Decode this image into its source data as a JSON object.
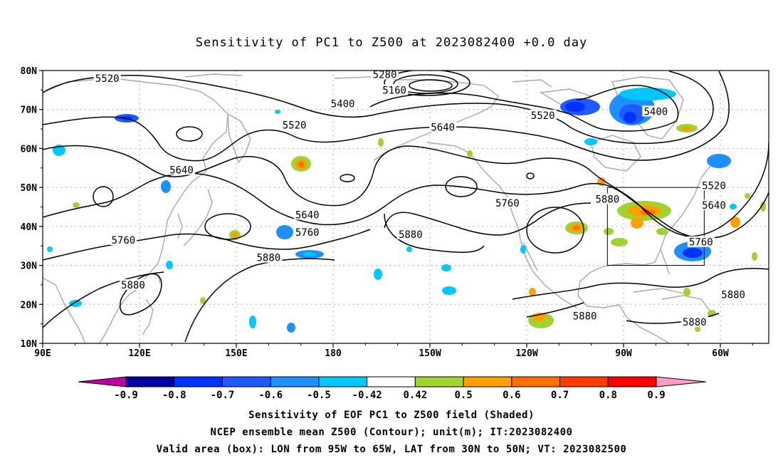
{
  "title": "Sensitivity of PC1 to Z500 at 2023082400 +0.0 day",
  "map": {
    "lat_labels": [
      "80N",
      "70N",
      "60N",
      "50N",
      "40N",
      "30N",
      "20N",
      "10N"
    ],
    "lon_labels": [
      "90E",
      "120E",
      "150E",
      "180",
      "150W",
      "120W",
      "90W",
      "60W"
    ],
    "contour_labels": [
      {
        "text": "5520",
        "lat": 78,
        "lon": 110
      },
      {
        "text": "5280",
        "lat": 79,
        "lon": 196
      },
      {
        "text": "5160",
        "lat": 75,
        "lon": 199
      },
      {
        "text": "5400",
        "lat": 71.5,
        "lon": 183
      },
      {
        "text": "5520",
        "lat": 66,
        "lon": 168
      },
      {
        "text": "5640",
        "lat": 65.5,
        "lon": 214
      },
      {
        "text": "5520",
        "lat": 68.5,
        "lon": 245
      },
      {
        "text": "5400",
        "lat": 69.5,
        "lon": 280
      },
      {
        "text": "5640",
        "lat": 54.5,
        "lon": 133
      },
      {
        "text": "5520",
        "lat": 50.5,
        "lon": 298
      },
      {
        "text": "5640",
        "lat": 45.5,
        "lon": 298
      },
      {
        "text": "5640",
        "lat": 43,
        "lon": 172
      },
      {
        "text": "5760",
        "lat": 38.5,
        "lon": 172
      },
      {
        "text": "5760",
        "lat": 46,
        "lon": 234
      },
      {
        "text": "5880",
        "lat": 47,
        "lon": 265
      },
      {
        "text": "5880",
        "lat": 38,
        "lon": 204
      },
      {
        "text": "5760",
        "lat": 36.5,
        "lon": 115
      },
      {
        "text": "5880",
        "lat": 32,
        "lon": 160
      },
      {
        "text": "5880",
        "lat": 25,
        "lon": 118
      },
      {
        "text": "5760",
        "lat": 36,
        "lon": 294
      },
      {
        "text": "5880",
        "lat": 22.5,
        "lon": 304
      },
      {
        "text": "5880",
        "lat": 17,
        "lon": 258
      },
      {
        "text": "5880",
        "lat": 15.5,
        "lon": 292
      }
    ],
    "valid_box": {
      "lon_min": 265,
      "lon_max": 295,
      "lat_min": 30,
      "lat_max": 50
    }
  },
  "colorbar": {
    "labels": [
      "-0.9",
      "-0.8",
      "-0.7",
      "-0.6",
      "-0.5",
      "-0.42",
      "0.42",
      "0.5",
      "0.6",
      "0.7",
      "0.8",
      "0.9"
    ],
    "colors": [
      "#0000a0",
      "#0032ff",
      "#1e5aff",
      "#1e90ff",
      "#00c8ff",
      "#ffffff",
      "#a0d232",
      "#ffa000",
      "#ff6e00",
      "#ff3c00",
      "#ff0000"
    ],
    "low_extend_color": "#c000a0",
    "high_extend_color": "#ff9ec8"
  },
  "captions": [
    "Sensitivity of EOF PC1 to Z500 field (Shaded)",
    "NCEP ensemble mean Z500 (Contour); unit(m); IT:2023082400",
    "Valid area (box): LON from 95W to 65W, LAT from 30N to 50N; VT: 2023082500"
  ]
}
